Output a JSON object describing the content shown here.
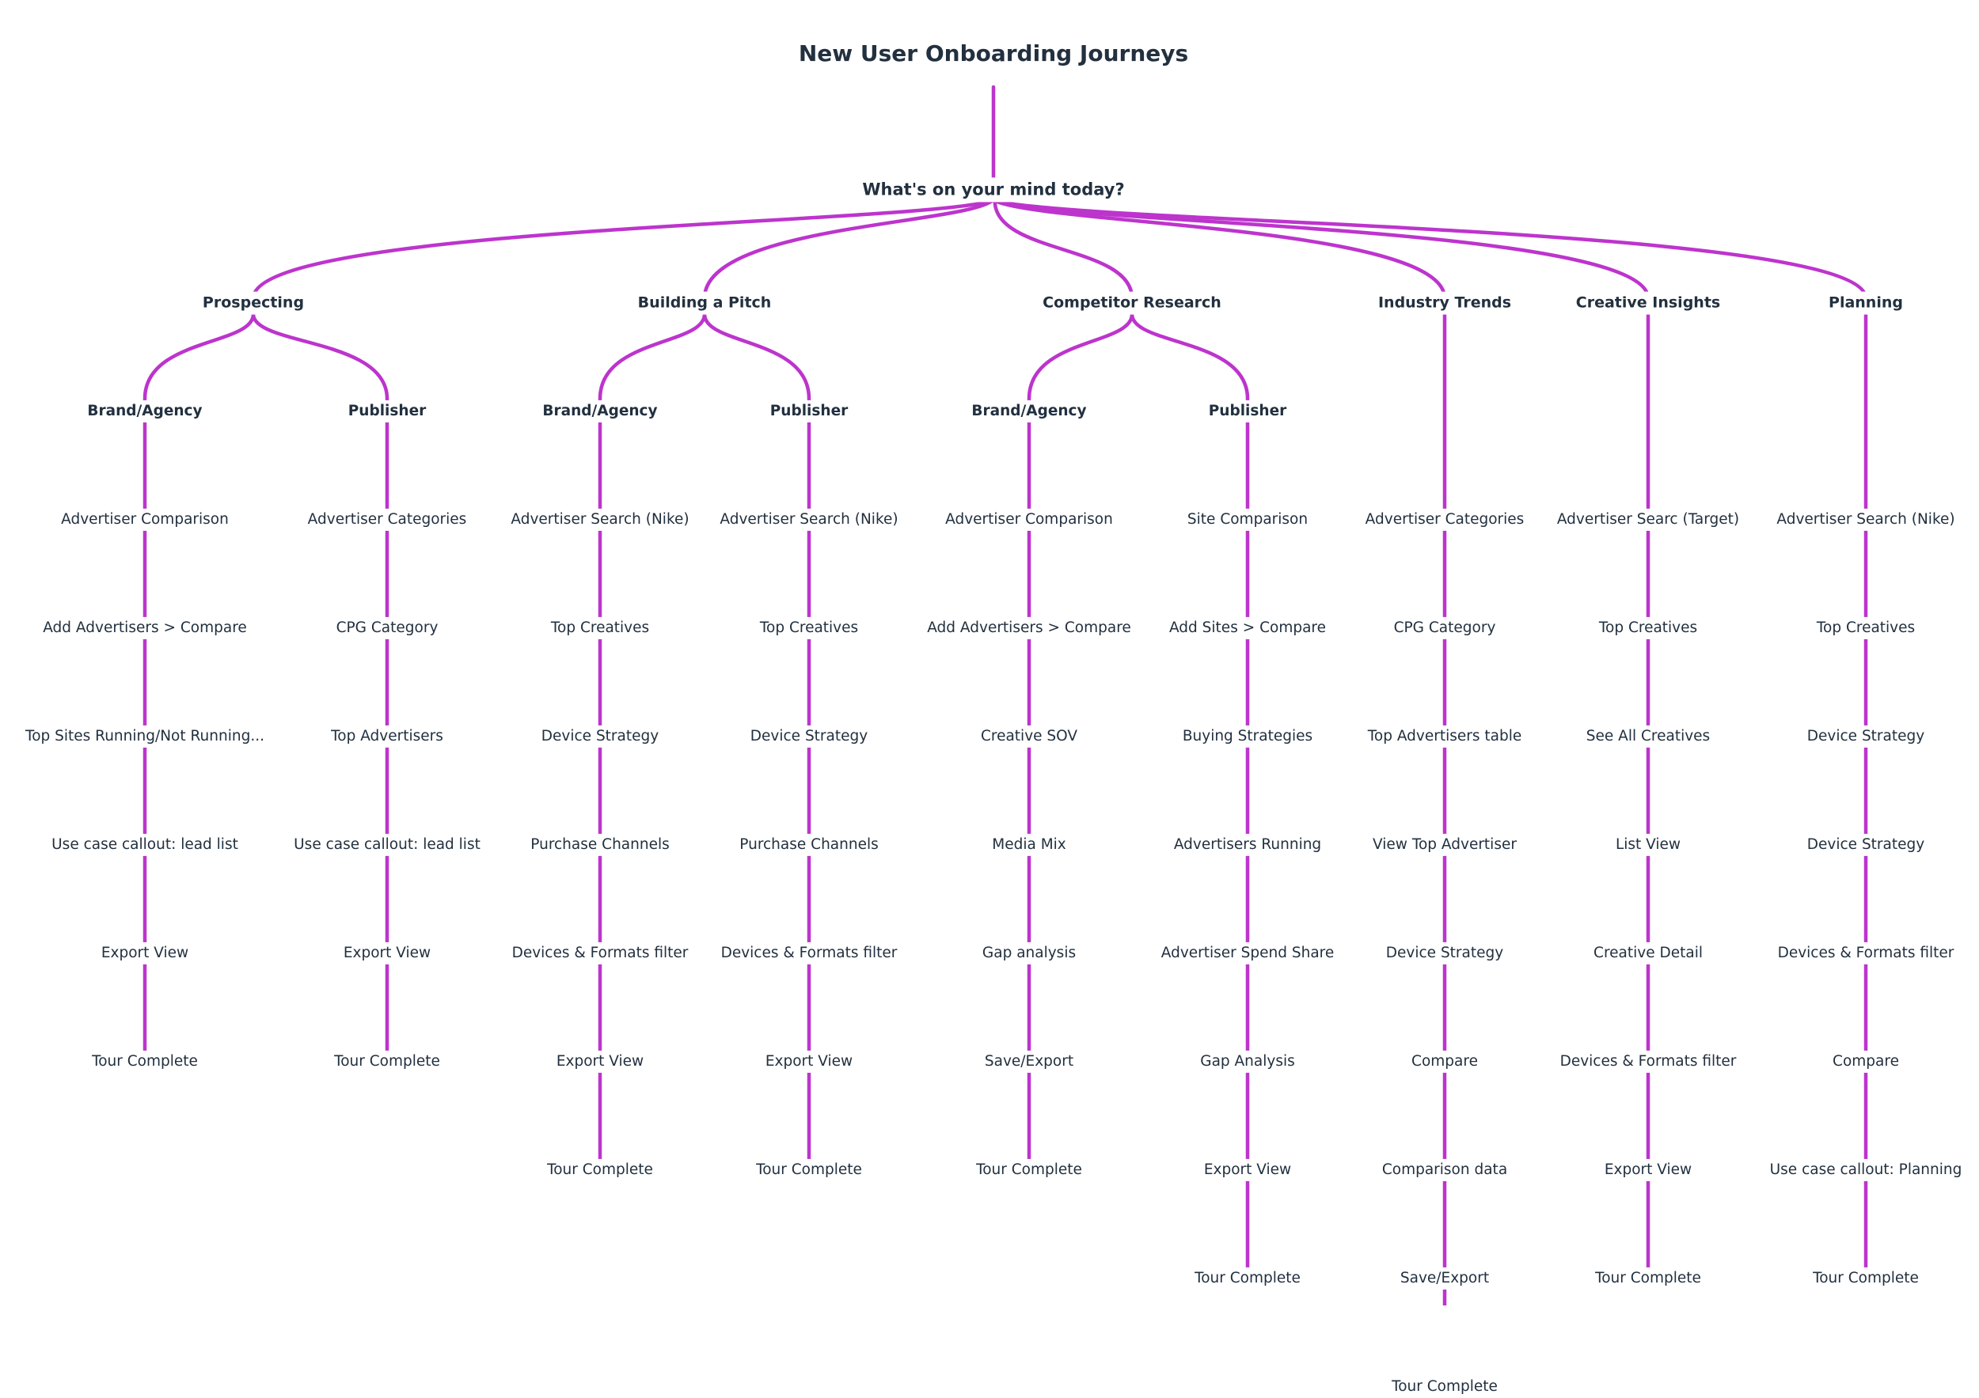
{
  "title": "New User Onboarding Journeys",
  "colors": {
    "connector": "#bd34cd",
    "text": "#22303f",
    "background": "#ffffff"
  },
  "root": {
    "label": "What's on your mind today?",
    "branches": [
      {
        "label": "Prospecting",
        "audiences": [
          {
            "label": "Brand/Agency",
            "steps": [
              "Advertiser Comparison",
              "Add Advertisers > Compare",
              "Top Sites Running/Not Running...",
              "Use case callout: lead list",
              "Export View",
              "Tour Complete"
            ]
          },
          {
            "label": "Publisher",
            "steps": [
              "Advertiser Categories",
              "CPG Category",
              "Top Advertisers",
              "Use case callout: lead list",
              "Export View",
              "Tour Complete"
            ]
          }
        ]
      },
      {
        "label": "Building a Pitch",
        "audiences": [
          {
            "label": "Brand/Agency",
            "steps": [
              "Advertiser Search (Nike)",
              "Top Creatives",
              "Device Strategy",
              "Purchase Channels",
              "Devices & Formats filter",
              "Export View",
              "Tour Complete"
            ]
          },
          {
            "label": "Publisher",
            "steps": [
              "Advertiser Search (Nike)",
              "Top Creatives",
              "Device Strategy",
              "Purchase Channels",
              "Devices & Formats filter",
              "Export View",
              "Tour Complete"
            ]
          }
        ]
      },
      {
        "label": "Competitor Research",
        "audiences": [
          {
            "label": "Brand/Agency",
            "steps": [
              "Advertiser Comparison",
              "Add Advertisers > Compare",
              "Creative SOV",
              "Media Mix",
              "Gap analysis",
              "Save/Export",
              "Tour Complete"
            ]
          },
          {
            "label": "Publisher",
            "steps": [
              "Site Comparison",
              "Add Sites > Compare",
              "Buying Strategies",
              "Advertisers Running",
              "Advertiser Spend Share",
              "Gap Analysis",
              "Export View",
              "Tour Complete"
            ]
          }
        ]
      },
      {
        "label": "Industry Trends",
        "steps": [
          "Advertiser Categories",
          "CPG Category",
          "Top Advertisers table",
          "View Top Advertiser",
          "Device Strategy",
          "Compare",
          "Comparison data",
          "Save/Export",
          "Tour Complete"
        ]
      },
      {
        "label": "Creative Insights",
        "steps": [
          "Advertiser Searc (Target)",
          "Top Creatives",
          "See All Creatives",
          "List View",
          "Creative Detail",
          "Devices & Formats filter",
          "Export View",
          "Tour Complete"
        ]
      },
      {
        "label": "Planning",
        "steps": [
          "Advertiser Search (Nike)",
          "Top Creatives",
          "Device Strategy",
          "Device Strategy",
          "Devices & Formats filter",
          "Compare",
          "Use case callout: Planning",
          "Tour Complete"
        ]
      }
    ]
  }
}
